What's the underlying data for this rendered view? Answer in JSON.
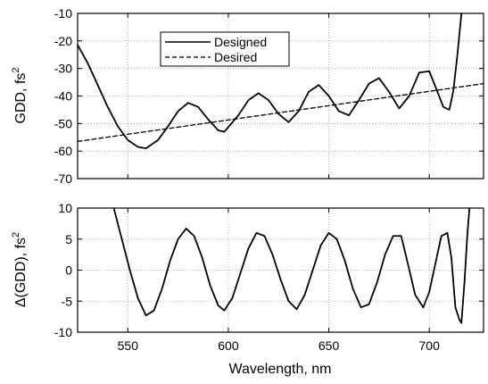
{
  "chart_data": [
    {
      "type": "line",
      "panel": "top",
      "ylabel": "GDD, fs",
      "ylabel_superscript": "2",
      "xlim": [
        525,
        727
      ],
      "ylim": [
        -70,
        -10
      ],
      "yticks": [
        -10,
        -20,
        -30,
        -40,
        -50,
        -60,
        -70
      ],
      "xticks": [
        550,
        600,
        650,
        700
      ],
      "grid": true,
      "legend_placement": "top-center",
      "series": [
        {
          "name": "Designed",
          "style": "solid",
          "x": [
            525,
            530,
            535,
            540,
            545,
            550,
            555,
            559,
            565,
            570,
            575,
            580,
            585,
            590,
            595,
            598,
            605,
            610,
            615,
            620,
            625,
            630,
            635,
            640,
            645,
            650,
            655,
            660,
            665,
            670,
            675,
            680,
            685,
            690,
            695,
            700,
            703,
            707,
            710,
            712,
            714,
            716
          ],
          "y": [
            -21.5,
            -28,
            -36,
            -44,
            -51,
            -56,
            -58.5,
            -59,
            -56,
            -51,
            -45.5,
            -42.5,
            -44,
            -48.5,
            -52.5,
            -53,
            -47,
            -41.5,
            -39,
            -41.5,
            -46.5,
            -49.5,
            -45.5,
            -38.5,
            -36,
            -40,
            -45.5,
            -47,
            -41.5,
            -35.5,
            -33.5,
            -38.5,
            -44.5,
            -40,
            -31.5,
            -31,
            -36.5,
            -44,
            -45,
            -38,
            -25,
            -10
          ]
        },
        {
          "name": "Desired",
          "style": "dashed",
          "x": [
            525,
            727
          ],
          "y": [
            -56.5,
            -35.5
          ]
        }
      ]
    },
    {
      "type": "line",
      "panel": "bottom",
      "xlabel": "Wavelength, nm",
      "ylabel": "Δ(GDD), fs",
      "ylabel_superscript": "2",
      "xlim": [
        525,
        727
      ],
      "ylim": [
        -10,
        10
      ],
      "yticks": [
        10,
        5,
        0,
        -5,
        -10
      ],
      "xticks": [
        550,
        600,
        650,
        700
      ],
      "grid": true,
      "series": [
        {
          "style": "solid",
          "x": [
            543,
            547,
            551,
            555,
            559,
            563,
            567,
            571,
            575,
            579,
            583,
            587,
            591,
            595,
            598,
            602,
            606,
            610,
            614,
            618,
            622,
            626,
            630,
            634,
            638,
            642,
            646,
            650,
            654,
            658,
            662,
            666,
            670,
            674,
            678,
            682,
            686,
            689,
            693,
            697,
            700,
            703,
            706,
            709,
            711,
            713,
            715,
            716
          ],
          "y": [
            10,
            5,
            0,
            -4.5,
            -7.3,
            -6.5,
            -3,
            1.5,
            5,
            6.7,
            5.5,
            2,
            -2.5,
            -5.7,
            -6.5,
            -4.5,
            -0.5,
            3.5,
            6,
            5.5,
            2.5,
            -1.5,
            -5,
            -6.3,
            -4,
            0,
            4,
            6,
            5,
            1.5,
            -3,
            -6,
            -5.5,
            -2,
            2.5,
            5.5,
            5.5,
            1.5,
            -4,
            -6,
            -3.5,
            1,
            5.5,
            6,
            2,
            -6,
            -8,
            -8.5
          ]
        },
        {
          "style": "solid",
          "x": [
            716,
            717.5,
            719,
            720
          ],
          "y": [
            -8.5,
            -2,
            6,
            10
          ]
        }
      ]
    }
  ]
}
